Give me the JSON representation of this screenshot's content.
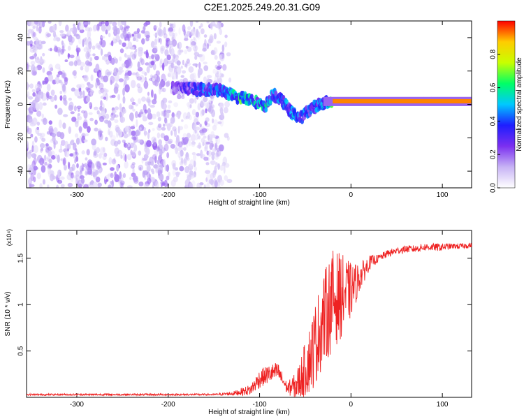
{
  "title": "C2E1.2025.249.20.31.G09",
  "chart_data": [
    {
      "type": "heatmap",
      "title": "C2E1.2025.249.20.31.G09",
      "xlabel": "Height of straight line (km)",
      "ylabel": "Frequency (Hz)",
      "xlim": [
        -355,
        132
      ],
      "ylim": [
        -50,
        50
      ],
      "xticks": [
        -300,
        -200,
        -100,
        0,
        100
      ],
      "yticks": [
        -40,
        -20,
        0,
        20,
        40
      ],
      "colorbar": {
        "label": "Normalized spectral amplitude",
        "range": [
          0.0,
          1.0
        ],
        "ticks": [
          0.0,
          0.2,
          0.4,
          0.6,
          0.8
        ],
        "colormap": [
          "#ffffff",
          "#c7b3f5",
          "#7b2ff0",
          "#1e1eff",
          "#00c8ff",
          "#00ff66",
          "#c8ff00",
          "#ffcc00",
          "#ff0000"
        ]
      },
      "noise_region": {
        "x": [
          -355,
          -130
        ],
        "y": [
          -50,
          50
        ],
        "amplitude": [
          0.05,
          0.2
        ]
      },
      "signal_track": [
        {
          "x": -190,
          "y": 10,
          "amplitude": 0.3
        },
        {
          "x": -170,
          "y": 9,
          "amplitude": 0.45
        },
        {
          "x": -150,
          "y": 9,
          "amplitude": 0.5
        },
        {
          "x": -140,
          "y": 8,
          "amplitude": 0.5
        },
        {
          "x": -125,
          "y": 4,
          "amplitude": 0.7
        },
        {
          "x": -115,
          "y": 4,
          "amplitude": 0.75
        },
        {
          "x": -105,
          "y": 2,
          "amplitude": 0.6
        },
        {
          "x": -95,
          "y": -2,
          "amplitude": 0.65
        },
        {
          "x": -85,
          "y": 6,
          "amplitude": 0.5
        },
        {
          "x": -75,
          "y": 2,
          "amplitude": 0.5
        },
        {
          "x": -65,
          "y": -5,
          "amplitude": 0.55
        },
        {
          "x": -55,
          "y": -8,
          "amplitude": 0.5
        },
        {
          "x": -45,
          "y": -3,
          "amplitude": 0.5
        },
        {
          "x": -35,
          "y": 0,
          "amplitude": 0.5
        },
        {
          "x": -20,
          "y": 2,
          "amplitude": 0.7
        },
        {
          "x": 0,
          "y": 2,
          "amplitude": 0.85
        },
        {
          "x": 20,
          "y": 2,
          "amplitude": 0.95
        },
        {
          "x": 60,
          "y": 2,
          "amplitude": 0.95
        },
        {
          "x": 85,
          "y": 3,
          "amplitude": 0.9
        },
        {
          "x": 132,
          "y": 2,
          "amplitude": 0.95
        }
      ]
    },
    {
      "type": "line",
      "xlabel": "Height of straight line (km)",
      "ylabel": "SNR (10 * v/v)",
      "y_multiplier": "(x10⁴)",
      "xlim": [
        -355,
        132
      ],
      "ylim": [
        0,
        1.8
      ],
      "xticks": [
        -300,
        -200,
        -100,
        0,
        100
      ],
      "yticks": [
        0.5,
        1.0,
        1.5
      ],
      "series": [
        {
          "color": "#ee2222",
          "x": [
            -355,
            -300,
            -200,
            -150,
            -130,
            -110,
            -100,
            -90,
            -80,
            -70,
            -60,
            -50,
            -40,
            -30,
            -20,
            -10,
            0,
            10,
            20,
            30,
            40,
            50,
            60,
            70,
            80,
            90,
            100,
            110,
            120,
            132
          ],
          "y": [
            0.03,
            0.03,
            0.03,
            0.03,
            0.04,
            0.08,
            0.2,
            0.25,
            0.28,
            0.1,
            0.12,
            0.3,
            0.55,
            0.85,
            1.05,
            1.1,
            1.15,
            1.3,
            1.45,
            1.5,
            1.55,
            1.58,
            1.6,
            1.6,
            1.62,
            1.62,
            1.62,
            1.63,
            1.63,
            1.64
          ],
          "noise": [
            0.01,
            0.01,
            0.01,
            0.01,
            0.02,
            0.06,
            0.1,
            0.1,
            0.1,
            0.06,
            0.15,
            0.3,
            0.45,
            0.5,
            0.55,
            0.45,
            0.3,
            0.15,
            0.08,
            0.04,
            0.04,
            0.04,
            0.04,
            0.04,
            0.04,
            0.04,
            0.04,
            0.03,
            0.03,
            0.03
          ]
        }
      ]
    }
  ]
}
